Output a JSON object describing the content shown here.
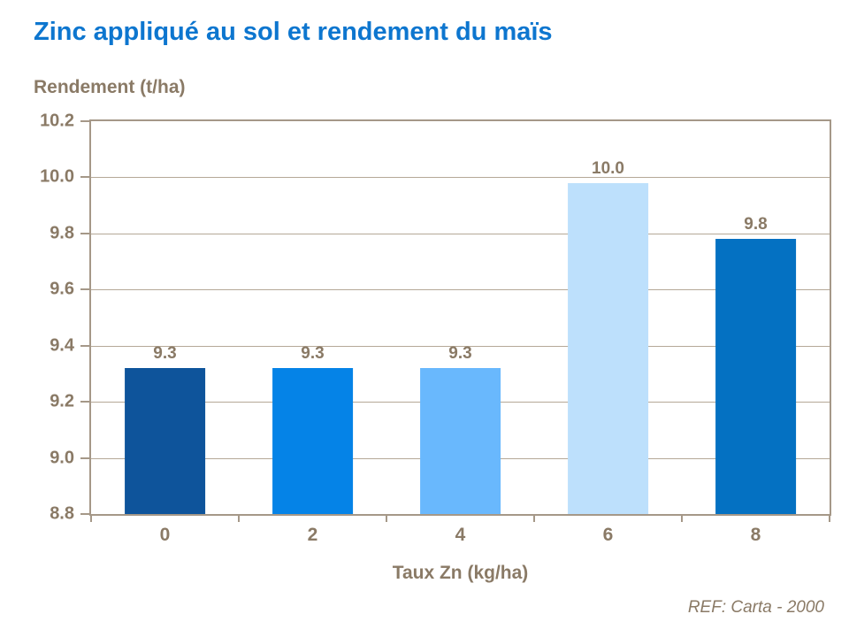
{
  "chart_data": {
    "type": "bar",
    "title": "Zinc appliqué au sol et rendement du maïs",
    "ylabel": "Rendement (t/ha)",
    "xlabel": "Taux Zn (kg/ha)",
    "annotation": "REF: Carta - 2000",
    "categories": [
      "0",
      "2",
      "4",
      "6",
      "8"
    ],
    "values": [
      9.32,
      9.32,
      9.32,
      9.98,
      9.78
    ],
    "data_labels": [
      "9.3",
      "9.3",
      "9.3",
      "10.0",
      "9.8"
    ],
    "bar_colors": [
      "#0e549b",
      "#0583e7",
      "#69b8fd",
      "#bde0fc",
      "#0471c2"
    ],
    "ylim": [
      8.8,
      10.2
    ],
    "ytick_step": 0.2,
    "ytick_labels": [
      "10.2",
      "10.0",
      "9.8",
      "9.6",
      "9.4",
      "9.2",
      "9.0",
      "8.8"
    ],
    "grid": "horizontal",
    "legend_position": "none",
    "colors": {
      "title_text": "#0d76cf",
      "axis_text": "#8a7a66",
      "frame": "#a59888",
      "gridline": "#b5a897",
      "background": "#ffffff"
    }
  }
}
